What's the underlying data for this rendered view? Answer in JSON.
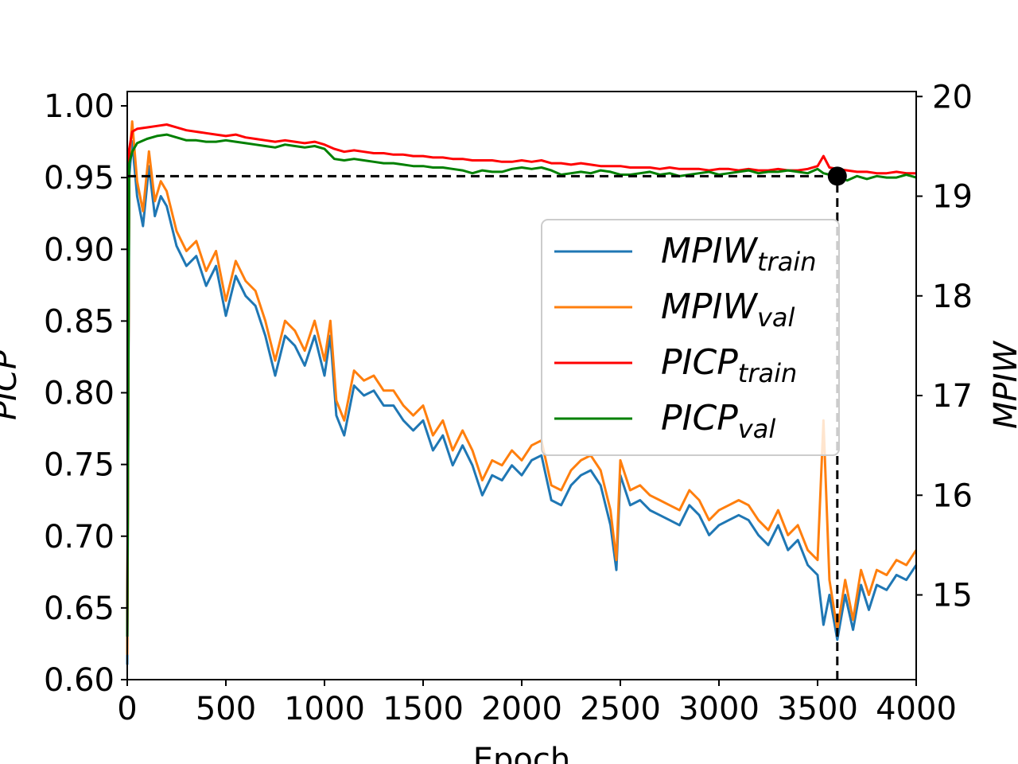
{
  "chart_data": {
    "type": "line",
    "xlabel": "Epoch",
    "ylabel_left": "PICP",
    "ylabel_right": "MPIW",
    "xlim": [
      0,
      4000
    ],
    "ylim_left": [
      0.6,
      1.01
    ],
    "ylim_right": [
      14.15,
      20.05
    ],
    "x_ticks": [
      "0",
      "500",
      "1000",
      "1500",
      "2000",
      "2500",
      "3000",
      "3500",
      "4000"
    ],
    "y_ticks_left": [
      "0.60",
      "0.65",
      "0.70",
      "0.75",
      "0.80",
      "0.85",
      "0.90",
      "0.95",
      "1.00"
    ],
    "y_ticks_right": [
      "15",
      "16",
      "17",
      "18",
      "19",
      "20"
    ],
    "legend_position": "center-right",
    "grid": false,
    "series": [
      {
        "name": "MPIW_train",
        "label_main": "MPIW",
        "label_sub": "train",
        "color": "#1f77b4",
        "axis": "right",
        "x": [
          0,
          10,
          25,
          50,
          80,
          110,
          140,
          170,
          200,
          250,
          300,
          350,
          400,
          450,
          500,
          550,
          600,
          650,
          700,
          750,
          800,
          850,
          900,
          950,
          1000,
          1030,
          1060,
          1100,
          1150,
          1200,
          1250,
          1300,
          1350,
          1400,
          1450,
          1500,
          1550,
          1600,
          1650,
          1700,
          1750,
          1800,
          1850,
          1900,
          1950,
          2000,
          2050,
          2100,
          2150,
          2200,
          2250,
          2300,
          2350,
          2400,
          2450,
          2480,
          2500,
          2550,
          2600,
          2650,
          2700,
          2750,
          2800,
          2850,
          2900,
          2950,
          3000,
          3050,
          3100,
          3150,
          3200,
          3250,
          3300,
          3350,
          3400,
          3450,
          3500,
          3530,
          3560,
          3600,
          3640,
          3680,
          3720,
          3760,
          3800,
          3850,
          3900,
          3950,
          4000
        ],
        "values": [
          14.3,
          19.2,
          19.55,
          19.0,
          18.7,
          19.3,
          18.8,
          19.0,
          18.9,
          18.5,
          18.3,
          18.4,
          18.1,
          18.3,
          17.8,
          18.2,
          18.0,
          17.9,
          17.6,
          17.2,
          17.6,
          17.5,
          17.3,
          17.6,
          17.2,
          17.6,
          16.8,
          16.6,
          17.1,
          17.0,
          17.05,
          16.9,
          16.9,
          16.75,
          16.65,
          16.75,
          16.45,
          16.6,
          16.3,
          16.5,
          16.3,
          16.0,
          16.2,
          16.15,
          16.3,
          16.2,
          16.35,
          16.4,
          15.95,
          15.9,
          16.1,
          16.2,
          16.25,
          16.1,
          15.7,
          15.25,
          16.2,
          15.9,
          15.95,
          15.85,
          15.8,
          15.75,
          15.7,
          15.9,
          15.8,
          15.6,
          15.7,
          15.75,
          15.8,
          15.75,
          15.6,
          15.5,
          15.7,
          15.45,
          15.55,
          15.3,
          15.2,
          14.7,
          15.0,
          14.55,
          15.0,
          14.65,
          15.1,
          14.85,
          15.1,
          15.05,
          15.2,
          15.15,
          15.3
        ]
      },
      {
        "name": "MPIW_val",
        "label_main": "MPIW",
        "label_sub": "val",
        "color": "#ff7f0e",
        "axis": "right",
        "x": [
          0,
          10,
          25,
          50,
          80,
          110,
          140,
          170,
          200,
          250,
          300,
          350,
          400,
          450,
          500,
          550,
          600,
          650,
          700,
          750,
          800,
          850,
          900,
          950,
          1000,
          1030,
          1060,
          1100,
          1150,
          1200,
          1250,
          1300,
          1350,
          1400,
          1450,
          1500,
          1550,
          1600,
          1650,
          1700,
          1750,
          1800,
          1850,
          1900,
          1950,
          2000,
          2050,
          2100,
          2150,
          2200,
          2250,
          2300,
          2350,
          2400,
          2450,
          2480,
          2500,
          2550,
          2600,
          2650,
          2700,
          2750,
          2800,
          2850,
          2900,
          2950,
          3000,
          3050,
          3100,
          3150,
          3200,
          3250,
          3300,
          3350,
          3400,
          3450,
          3500,
          3530,
          3560,
          3600,
          3640,
          3680,
          3720,
          3760,
          3800,
          3850,
          3900,
          3950,
          4000
        ],
        "values": [
          14.4,
          19.35,
          19.75,
          19.15,
          18.85,
          19.45,
          18.95,
          19.15,
          19.05,
          18.65,
          18.45,
          18.55,
          18.25,
          18.45,
          17.95,
          18.35,
          18.15,
          18.05,
          17.75,
          17.35,
          17.75,
          17.65,
          17.45,
          17.75,
          17.35,
          17.75,
          16.95,
          16.75,
          17.25,
          17.15,
          17.2,
          17.05,
          17.05,
          16.9,
          16.8,
          16.9,
          16.6,
          16.75,
          16.45,
          16.65,
          16.45,
          16.15,
          16.35,
          16.3,
          16.45,
          16.35,
          16.5,
          16.55,
          16.1,
          16.05,
          16.25,
          16.35,
          16.4,
          16.25,
          15.85,
          15.35,
          16.35,
          16.05,
          16.1,
          16.0,
          15.95,
          15.9,
          15.85,
          16.05,
          15.95,
          15.75,
          15.85,
          15.9,
          15.95,
          15.9,
          15.75,
          15.65,
          15.85,
          15.6,
          15.7,
          15.45,
          15.35,
          16.75,
          15.15,
          14.65,
          15.15,
          14.75,
          15.25,
          15.0,
          15.25,
          15.2,
          15.35,
          15.3,
          15.45
        ]
      },
      {
        "name": "PICP_train",
        "label_main": "PICP",
        "label_sub": "train",
        "color": "#ff0000",
        "axis": "left",
        "x": [
          0,
          10,
          25,
          50,
          100,
          150,
          200,
          250,
          300,
          350,
          400,
          450,
          500,
          550,
          600,
          650,
          700,
          750,
          800,
          850,
          900,
          950,
          1000,
          1050,
          1100,
          1150,
          1200,
          1250,
          1300,
          1350,
          1400,
          1450,
          1500,
          1550,
          1600,
          1650,
          1700,
          1750,
          1800,
          1850,
          1900,
          1950,
          2000,
          2050,
          2100,
          2150,
          2200,
          2250,
          2300,
          2350,
          2400,
          2450,
          2500,
          2550,
          2600,
          2650,
          2700,
          2750,
          2800,
          2850,
          2900,
          2950,
          3000,
          3050,
          3100,
          3150,
          3200,
          3250,
          3300,
          3350,
          3400,
          3450,
          3500,
          3530,
          3560,
          3600,
          3650,
          3700,
          3750,
          3800,
          3850,
          3900,
          3950,
          4000
        ],
        "values": [
          0.63,
          0.97,
          0.982,
          0.984,
          0.985,
          0.986,
          0.987,
          0.985,
          0.983,
          0.982,
          0.981,
          0.98,
          0.979,
          0.98,
          0.978,
          0.977,
          0.976,
          0.975,
          0.976,
          0.975,
          0.974,
          0.975,
          0.973,
          0.97,
          0.968,
          0.969,
          0.968,
          0.967,
          0.967,
          0.966,
          0.966,
          0.965,
          0.965,
          0.964,
          0.964,
          0.963,
          0.963,
          0.962,
          0.962,
          0.962,
          0.961,
          0.961,
          0.962,
          0.961,
          0.962,
          0.96,
          0.96,
          0.959,
          0.96,
          0.959,
          0.958,
          0.958,
          0.958,
          0.957,
          0.957,
          0.957,
          0.956,
          0.957,
          0.956,
          0.956,
          0.956,
          0.955,
          0.956,
          0.956,
          0.955,
          0.956,
          0.955,
          0.955,
          0.956,
          0.955,
          0.955,
          0.956,
          0.958,
          0.965,
          0.957,
          0.956,
          0.955,
          0.954,
          0.954,
          0.953,
          0.953,
          0.954,
          0.953,
          0.953
        ]
      },
      {
        "name": "PICP_val",
        "label_main": "PICP",
        "label_sub": "val",
        "color": "#008000",
        "axis": "left",
        "x": [
          0,
          10,
          25,
          50,
          100,
          150,
          200,
          250,
          300,
          350,
          400,
          450,
          500,
          550,
          600,
          650,
          700,
          750,
          800,
          850,
          900,
          950,
          1000,
          1050,
          1100,
          1150,
          1200,
          1250,
          1300,
          1350,
          1400,
          1450,
          1500,
          1550,
          1600,
          1650,
          1700,
          1750,
          1800,
          1850,
          1900,
          1950,
          2000,
          2050,
          2100,
          2150,
          2200,
          2250,
          2300,
          2350,
          2400,
          2450,
          2500,
          2550,
          2600,
          2650,
          2700,
          2750,
          2800,
          2850,
          2900,
          2950,
          3000,
          3050,
          3100,
          3150,
          3200,
          3250,
          3300,
          3350,
          3400,
          3450,
          3500,
          3530,
          3560,
          3600,
          3650,
          3700,
          3750,
          3800,
          3850,
          3900,
          3950,
          4000
        ],
        "values": [
          0.63,
          0.96,
          0.968,
          0.974,
          0.977,
          0.979,
          0.98,
          0.978,
          0.976,
          0.976,
          0.975,
          0.975,
          0.976,
          0.975,
          0.974,
          0.973,
          0.972,
          0.971,
          0.973,
          0.972,
          0.971,
          0.972,
          0.97,
          0.963,
          0.962,
          0.963,
          0.962,
          0.961,
          0.96,
          0.96,
          0.959,
          0.958,
          0.958,
          0.957,
          0.957,
          0.956,
          0.955,
          0.953,
          0.955,
          0.954,
          0.954,
          0.956,
          0.957,
          0.956,
          0.957,
          0.955,
          0.952,
          0.953,
          0.954,
          0.953,
          0.955,
          0.954,
          0.952,
          0.952,
          0.953,
          0.954,
          0.952,
          0.953,
          0.951,
          0.952,
          0.953,
          0.954,
          0.952,
          0.953,
          0.954,
          0.955,
          0.953,
          0.954,
          0.954,
          0.955,
          0.954,
          0.953,
          0.956,
          0.953,
          0.952,
          0.951,
          0.948,
          0.951,
          0.949,
          0.951,
          0.95,
          0.95,
          0.952,
          0.95
        ]
      }
    ],
    "annotations": [
      {
        "type": "marker",
        "x": 3600,
        "y": 0.951,
        "axis": "left",
        "color": "#000000"
      },
      {
        "type": "hline",
        "y": 0.951,
        "x_range": [
          0,
          3600
        ],
        "axis": "left",
        "style": "dashed",
        "color": "#000000"
      },
      {
        "type": "vline",
        "x": 3600,
        "y_range": [
          0.6,
          0.951
        ],
        "axis": "left",
        "style": "dashed",
        "color": "#000000"
      }
    ]
  }
}
